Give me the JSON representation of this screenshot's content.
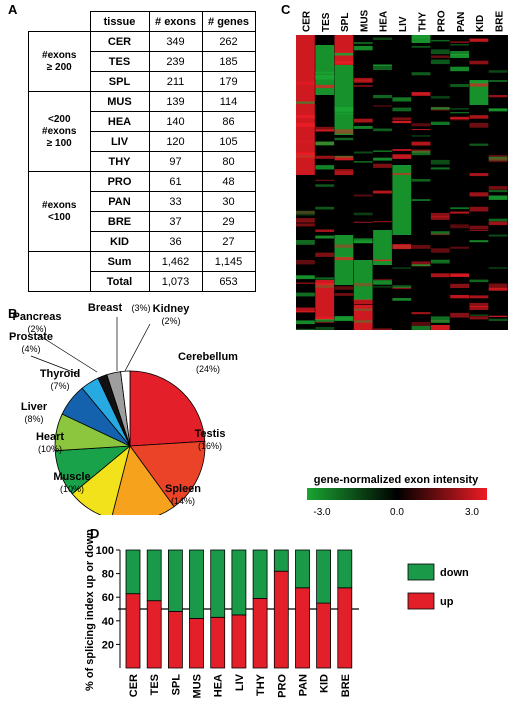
{
  "panels": {
    "a": "A",
    "b": "B",
    "c": "C",
    "d": "D"
  },
  "tableA": {
    "headers": [
      "tissue",
      "# exons",
      "# genes"
    ],
    "groups": [
      {
        "label_lines": [
          "#exons",
          "≥ 200"
        ],
        "rows": [
          [
            "CER",
            "349",
            "262"
          ],
          [
            "TES",
            "239",
            "185"
          ],
          [
            "SPL",
            "211",
            "179"
          ]
        ]
      },
      {
        "label_lines": [
          "<200",
          "#exons",
          "≥ 100"
        ],
        "rows": [
          [
            "MUS",
            "139",
            "114"
          ],
          [
            "HEA",
            "140",
            "86"
          ],
          [
            "LIV",
            "120",
            "105"
          ],
          [
            "THY",
            "97",
            "80"
          ]
        ]
      },
      {
        "label_lines": [
          "#exons",
          "<100"
        ],
        "rows": [
          [
            "PRO",
            "61",
            "48"
          ],
          [
            "PAN",
            "33",
            "30"
          ],
          [
            "BRE",
            "37",
            "29"
          ],
          [
            "KID",
            "36",
            "27"
          ]
        ]
      },
      {
        "label_lines": [
          ""
        ],
        "rows": [
          [
            "Sum",
            "1,462",
            "1,145"
          ],
          [
            "Total",
            "1,073",
            "653"
          ]
        ]
      }
    ]
  },
  "pie": {
    "slices": [
      {
        "name": "Cerebellum",
        "pct": "(24%)",
        "value": 24,
        "color": "#e3202a"
      },
      {
        "name": "Testis",
        "pct": "(16%)",
        "value": 16,
        "color": "#ea4328"
      },
      {
        "name": "Spleen",
        "pct": "(14%)",
        "value": 14,
        "color": "#f7a21c"
      },
      {
        "name": "Muscle",
        "pct": "(10%)",
        "value": 10,
        "color": "#f2e21b"
      },
      {
        "name": "Heart",
        "pct": "(10%)",
        "value": 10,
        "color": "#19a24a"
      },
      {
        "name": "Liver",
        "pct": "(8%)",
        "value": 8,
        "color": "#8cc63f"
      },
      {
        "name": "Thyroid",
        "pct": "(7%)",
        "value": 7,
        "color": "#1462ad"
      },
      {
        "name": "Prostate",
        "pct": "(4%)",
        "value": 4,
        "color": "#27aae1"
      },
      {
        "name": "Pancreas",
        "pct": "(2%)",
        "value": 2,
        "color": "#111111"
      },
      {
        "name": "Breast",
        "pct": "(3%)",
        "value": 3,
        "color": "#9e9e9e"
      },
      {
        "name": "Kidney",
        "pct": "(2%)",
        "value": 2,
        "color": "#ffffff"
      }
    ]
  },
  "heatmap": {
    "columns": [
      "CER",
      "TES",
      "SPL",
      "MUS",
      "HEA",
      "LIV",
      "THY",
      "PRO",
      "PAN",
      "KID",
      "BRE"
    ],
    "legend_title": "gene-normalized exon intensity",
    "legend_ticks": [
      "-3.0",
      "0.0",
      "3.0"
    ],
    "colors": {
      "low": "#1aa532",
      "mid": "#000000",
      "high": "#ec1c24"
    }
  },
  "chart_data": {
    "type": "bar",
    "categories": [
      "CER",
      "TES",
      "SPL",
      "MUS",
      "HEA",
      "LIV",
      "THY",
      "PRO",
      "PAN",
      "KID",
      "BRE"
    ],
    "series": [
      {
        "name": "up",
        "values": [
          63,
          57,
          48,
          42,
          43,
          45,
          59,
          82,
          68,
          55,
          68
        ],
        "color": "#e3202a"
      },
      {
        "name": "down",
        "values": [
          37,
          43,
          52,
          58,
          57,
          55,
          41,
          18,
          32,
          45,
          32
        ],
        "color": "#1a9a48"
      }
    ],
    "stacked": true,
    "ylabel": "% of splicing index up or down",
    "ylim": [
      0,
      100
    ],
    "yticks": [
      "20",
      "40",
      "60",
      "80",
      "100"
    ],
    "reference_line": 50,
    "legend": [
      "down",
      "up"
    ],
    "legend_position": "right"
  }
}
